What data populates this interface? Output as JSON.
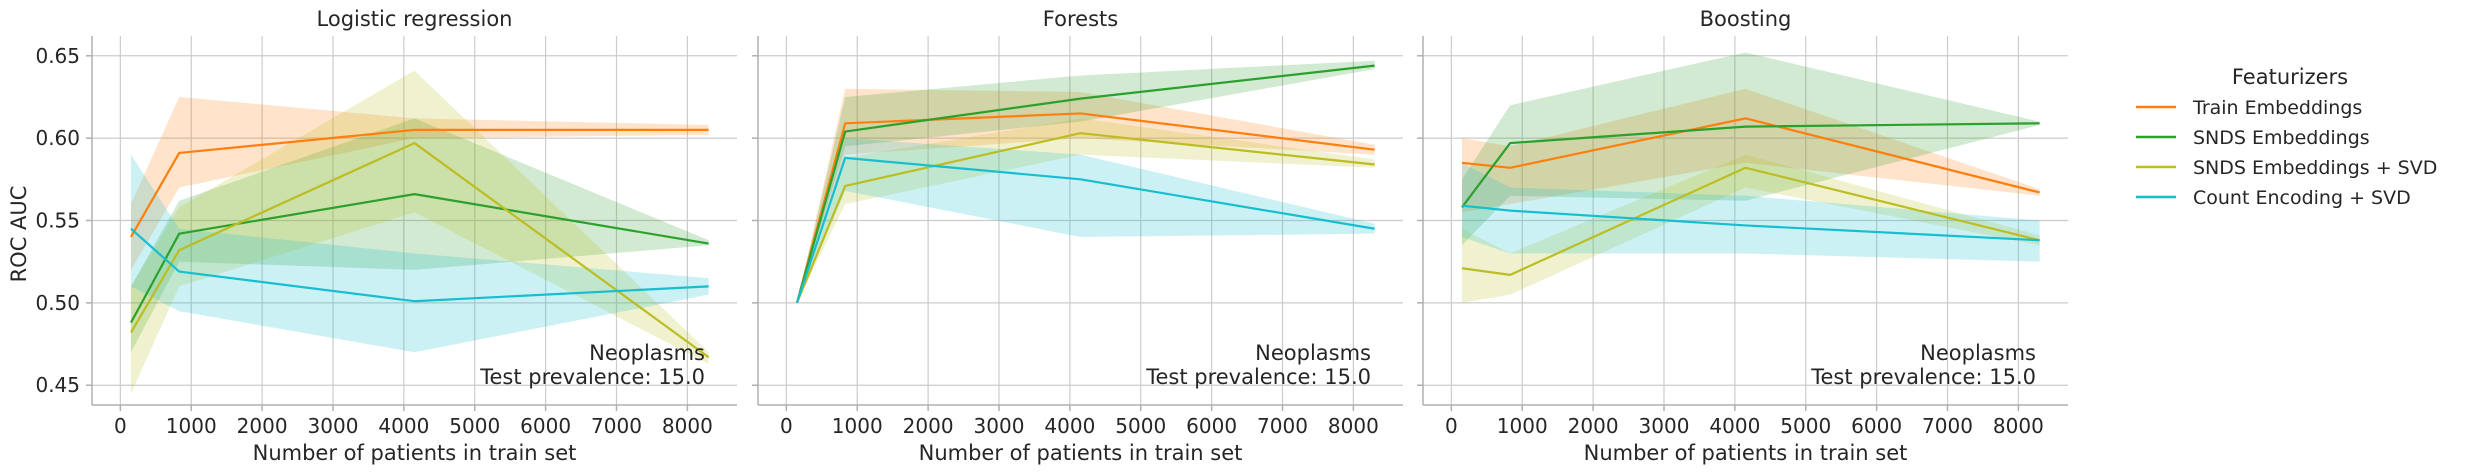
{
  "chart_data": {
    "type": "line",
    "ylabel": "ROC AUC",
    "xlabel": "Number of patients in train set",
    "xlim": [
      -400,
      8700
    ],
    "ylim": [
      0.438,
      0.662
    ],
    "xticks": [
      0,
      1000,
      2000,
      3000,
      4000,
      5000,
      6000,
      7000,
      8000
    ],
    "yticks": [
      0.45,
      0.5,
      0.55,
      0.6,
      0.65
    ],
    "ytick_labels": [
      "0.45",
      "0.50",
      "0.55",
      "0.60",
      "0.65"
    ],
    "grid": true,
    "legend": {
      "title": "Featurizers",
      "placement": "right"
    },
    "series_styles": [
      {
        "name": "Train Embeddings",
        "color": "#ff7f0e"
      },
      {
        "name": "SNDS Embeddings",
        "color": "#2ca02c"
      },
      {
        "name": "SNDS Embeddings + SVD",
        "color": "#bcbd22"
      },
      {
        "name": "Count Encoding + SVD",
        "color": "#17becf"
      }
    ],
    "x": [
      150,
      830,
      4150,
      8300
    ],
    "panels": [
      {
        "title": "Logistic regression",
        "annotation": [
          "Neoplasms",
          "Test prevalence: 15.0"
        ],
        "series": [
          {
            "name": "Train Embeddings",
            "values": [
              0.54,
              0.591,
              0.605,
              0.605
            ],
            "lower": [
              0.52,
              0.57,
              0.6,
              0.602
            ],
            "upper": [
              0.56,
              0.625,
              0.612,
              0.608
            ]
          },
          {
            "name": "SNDS Embeddings",
            "values": [
              0.488,
              0.542,
              0.566,
              0.536
            ],
            "lower": [
              0.47,
              0.525,
              0.52,
              0.535
            ],
            "upper": [
              0.51,
              0.562,
              0.612,
              0.538
            ]
          },
          {
            "name": "SNDS Embeddings + SVD",
            "values": [
              0.482,
              0.532,
              0.597,
              0.467
            ],
            "lower": [
              0.445,
              0.51,
              0.555,
              0.463
            ],
            "upper": [
              0.51,
              0.558,
              0.641,
              0.47
            ]
          },
          {
            "name": "Count Encoding + SVD",
            "values": [
              0.545,
              0.519,
              0.501,
              0.51
            ],
            "lower": [
              0.51,
              0.495,
              0.47,
              0.505
            ],
            "upper": [
              0.59,
              0.545,
              0.53,
              0.515
            ]
          }
        ]
      },
      {
        "title": "Forests",
        "annotation": [
          "Neoplasms",
          "Test prevalence: 15.0"
        ],
        "series": [
          {
            "name": "Train Embeddings",
            "values": [
              0.5,
              0.609,
              0.615,
              0.593
            ],
            "lower": [
              0.5,
              0.59,
              0.6,
              0.59
            ],
            "upper": [
              0.5,
              0.63,
              0.628,
              0.596
            ]
          },
          {
            "name": "SNDS Embeddings",
            "values": [
              0.5,
              0.604,
              0.624,
              0.644
            ],
            "lower": [
              0.5,
              0.595,
              0.61,
              0.642
            ],
            "upper": [
              0.5,
              0.625,
              0.638,
              0.647
            ]
          },
          {
            "name": "SNDS Embeddings + SVD",
            "values": [
              0.5,
              0.571,
              0.603,
              0.584
            ],
            "lower": [
              0.5,
              0.56,
              0.59,
              0.582
            ],
            "upper": [
              0.5,
              0.588,
              0.612,
              0.587
            ]
          },
          {
            "name": "Count Encoding + SVD",
            "values": [
              0.5,
              0.588,
              0.575,
              0.545
            ],
            "lower": [
              0.5,
              0.568,
              0.54,
              0.542
            ],
            "upper": [
              0.5,
              0.6,
              0.59,
              0.548
            ]
          }
        ]
      },
      {
        "title": "Boosting",
        "annotation": [
          "Neoplasms",
          "Test prevalence: 15.0"
        ],
        "series": [
          {
            "name": "Train Embeddings",
            "values": [
              0.585,
              0.582,
              0.612,
              0.567
            ],
            "lower": [
              0.555,
              0.56,
              0.585,
              0.565
            ],
            "upper": [
              0.6,
              0.595,
              0.63,
              0.569
            ]
          },
          {
            "name": "SNDS Embeddings",
            "values": [
              0.558,
              0.597,
              0.607,
              0.609
            ],
            "lower": [
              0.535,
              0.565,
              0.562,
              0.608
            ],
            "upper": [
              0.575,
              0.62,
              0.652,
              0.61
            ]
          },
          {
            "name": "SNDS Embeddings + SVD",
            "values": [
              0.521,
              0.517,
              0.582,
              0.538
            ],
            "lower": [
              0.5,
              0.505,
              0.57,
              0.535
            ],
            "upper": [
              0.545,
              0.53,
              0.59,
              0.541
            ]
          },
          {
            "name": "Count Encoding + SVD",
            "values": [
              0.559,
              0.556,
              0.547,
              0.538
            ],
            "lower": [
              0.54,
              0.53,
              0.53,
              0.525
            ],
            "upper": [
              0.585,
              0.57,
              0.565,
              0.55
            ]
          }
        ]
      }
    ]
  }
}
